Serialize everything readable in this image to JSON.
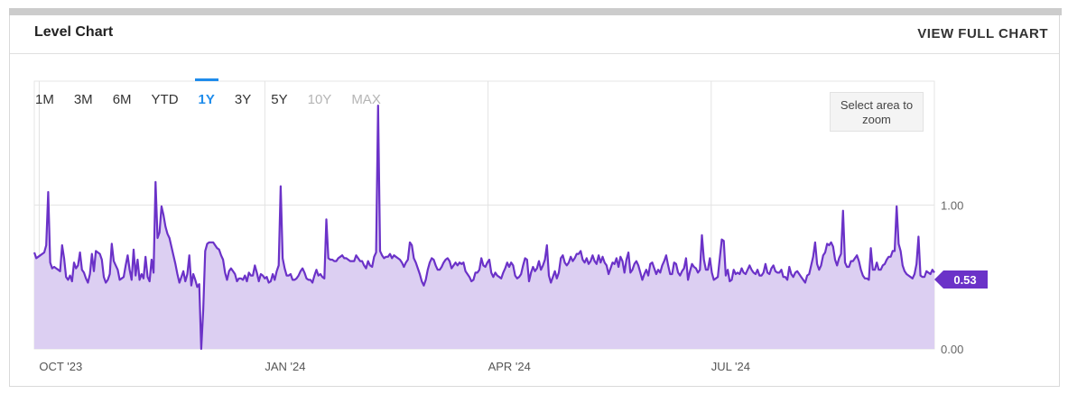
{
  "header": {
    "title": "Level Chart",
    "full_chart_label": "VIEW FULL CHART"
  },
  "range_selector": {
    "options": [
      "1M",
      "3M",
      "6M",
      "YTD",
      "1Y",
      "3Y",
      "5Y",
      "10Y",
      "MAX"
    ],
    "selected": "1Y",
    "disabled": [
      "10Y",
      "MAX"
    ]
  },
  "zoom_hint": "Select area to zoom",
  "colors": {
    "line": "#6b32c8",
    "fill": "#dccff2",
    "accent": "#1f8ceb",
    "badge": "#6b32c8"
  },
  "chart_data": {
    "type": "area",
    "title": "",
    "xlabel": "",
    "ylabel": "",
    "y_tick_labels": [
      "1.00",
      "0.00"
    ],
    "x_tick_labels": [
      "OCT '23",
      "JAN '24",
      "APR '24",
      "JUL '24"
    ],
    "x_range": [
      "2023-09-29",
      "2024-09-30"
    ],
    "y_range": [
      0,
      1.86
    ],
    "grid": true,
    "current_value_label": "0.53",
    "series": [
      {
        "values": [
          0.67,
          0.63,
          0.64,
          0.65,
          0.66,
          0.67,
          0.72,
          1.09,
          0.6,
          0.56,
          0.57,
          0.56,
          0.55,
          0.54,
          0.72,
          0.63,
          0.5,
          0.48,
          0.51,
          0.47,
          0.6,
          0.56,
          0.58,
          0.67,
          0.55,
          0.53,
          0.49,
          0.46,
          0.52,
          0.66,
          0.54,
          0.68,
          0.67,
          0.66,
          0.62,
          0.5,
          0.46,
          0.48,
          0.52,
          0.73,
          0.61,
          0.58,
          0.55,
          0.48,
          0.49,
          0.5,
          0.58,
          0.65,
          0.55,
          0.48,
          0.69,
          0.51,
          0.62,
          0.48,
          0.52,
          0.49,
          0.64,
          0.5,
          0.47,
          0.62,
          0.53,
          1.16,
          0.77,
          0.81,
          0.99,
          0.93,
          0.85,
          0.8,
          0.77,
          0.71,
          0.65,
          0.59,
          0.52,
          0.46,
          0.5,
          0.54,
          0.47,
          0.52,
          0.65,
          0.44,
          0.52,
          0.48,
          0.43,
          0.45,
          0.0,
          0.27,
          0.68,
          0.73,
          0.74,
          0.74,
          0.74,
          0.72,
          0.7,
          0.69,
          0.65,
          0.62,
          0.53,
          0.48,
          0.54,
          0.56,
          0.54,
          0.52,
          0.47,
          0.49,
          0.49,
          0.48,
          0.51,
          0.47,
          0.53,
          0.51,
          0.51,
          0.58,
          0.53,
          0.47,
          0.52,
          0.51,
          0.49,
          0.5,
          0.46,
          0.47,
          0.52,
          0.48,
          0.54,
          0.58,
          1.13,
          0.63,
          0.56,
          0.51,
          0.51,
          0.52,
          0.48,
          0.48,
          0.49,
          0.51,
          0.54,
          0.56,
          0.53,
          0.49,
          0.48,
          0.48,
          0.46,
          0.51,
          0.55,
          0.51,
          0.52,
          0.5,
          0.49,
          0.9,
          0.63,
          0.62,
          0.62,
          0.61,
          0.61,
          0.63,
          0.64,
          0.65,
          0.63,
          0.63,
          0.62,
          0.61,
          0.61,
          0.61,
          0.65,
          0.63,
          0.61,
          0.61,
          0.58,
          0.56,
          0.61,
          0.58,
          0.57,
          0.64,
          0.67,
          1.69,
          0.68,
          0.65,
          0.63,
          0.64,
          0.64,
          0.66,
          0.63,
          0.65,
          0.64,
          0.63,
          0.62,
          0.6,
          0.57,
          0.6,
          0.62,
          0.74,
          0.72,
          0.63,
          0.6,
          0.56,
          0.52,
          0.47,
          0.44,
          0.48,
          0.55,
          0.6,
          0.63,
          0.62,
          0.58,
          0.55,
          0.55,
          0.57,
          0.6,
          0.62,
          0.63,
          0.61,
          0.56,
          0.58,
          0.6,
          0.58,
          0.6,
          0.59,
          0.6,
          0.54,
          0.52,
          0.5,
          0.47,
          0.48,
          0.53,
          0.53,
          0.55,
          0.63,
          0.58,
          0.57,
          0.6,
          0.62,
          0.53,
          0.5,
          0.53,
          0.51,
          0.5,
          0.49,
          0.53,
          0.56,
          0.6,
          0.57,
          0.6,
          0.58,
          0.51,
          0.49,
          0.5,
          0.52,
          0.58,
          0.63,
          0.62,
          0.47,
          0.53,
          0.57,
          0.54,
          0.56,
          0.61,
          0.55,
          0.58,
          0.62,
          0.72,
          0.51,
          0.46,
          0.5,
          0.54,
          0.49,
          0.53,
          0.63,
          0.65,
          0.6,
          0.58,
          0.6,
          0.64,
          0.61,
          0.63,
          0.66,
          0.66,
          0.68,
          0.62,
          0.6,
          0.63,
          0.59,
          0.61,
          0.65,
          0.61,
          0.59,
          0.65,
          0.6,
          0.64,
          0.6,
          0.58,
          0.52,
          0.56,
          0.6,
          0.59,
          0.63,
          0.57,
          0.64,
          0.61,
          0.53,
          0.62,
          0.67,
          0.53,
          0.55,
          0.59,
          0.61,
          0.58,
          0.53,
          0.48,
          0.52,
          0.55,
          0.51,
          0.59,
          0.6,
          0.56,
          0.52,
          0.55,
          0.53,
          0.58,
          0.61,
          0.65,
          0.58,
          0.52,
          0.52,
          0.6,
          0.59,
          0.53,
          0.51,
          0.54,
          0.56,
          0.63,
          0.48,
          0.54,
          0.59,
          0.57,
          0.56,
          0.53,
          0.55,
          0.79,
          0.62,
          0.55,
          0.55,
          0.63,
          0.53,
          0.48,
          0.49,
          0.5,
          0.63,
          0.76,
          0.75,
          0.51,
          0.55,
          0.47,
          0.48,
          0.55,
          0.52,
          0.53,
          0.52,
          0.56,
          0.53,
          0.52,
          0.55,
          0.58,
          0.55,
          0.53,
          0.52,
          0.55,
          0.51,
          0.51,
          0.53,
          0.59,
          0.53,
          0.52,
          0.56,
          0.58,
          0.54,
          0.53,
          0.53,
          0.55,
          0.5,
          0.5,
          0.48,
          0.57,
          0.52,
          0.5,
          0.53,
          0.54,
          0.52,
          0.5,
          0.48,
          0.46,
          0.51,
          0.52,
          0.58,
          0.64,
          0.74,
          0.59,
          0.55,
          0.58,
          0.65,
          0.67,
          0.73,
          0.72,
          0.74,
          0.71,
          0.62,
          0.58,
          0.63,
          0.66,
          0.96,
          0.6,
          0.57,
          0.57,
          0.61,
          0.61,
          0.63,
          0.65,
          0.61,
          0.55,
          0.51,
          0.49,
          0.49,
          0.48,
          0.7,
          0.55,
          0.55,
          0.6,
          0.55,
          0.55,
          0.58,
          0.59,
          0.62,
          0.64,
          0.64,
          0.68,
          0.68,
          0.99,
          0.73,
          0.68,
          0.58,
          0.54,
          0.52,
          0.51,
          0.5,
          0.49,
          0.52,
          0.59,
          0.78,
          0.51,
          0.5,
          0.5,
          0.54,
          0.53,
          0.52,
          0.55,
          0.53
        ]
      }
    ]
  }
}
